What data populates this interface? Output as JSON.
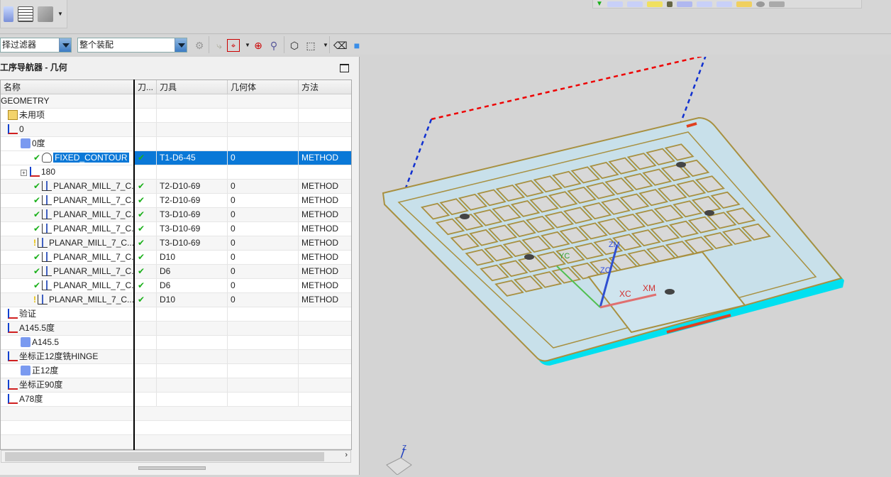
{
  "toolbar": {
    "filter_label": "择过滤器",
    "assembly_label": "整个装配"
  },
  "navigator": {
    "title": "工序导航器 - 几何",
    "columns": [
      "名称",
      "刀...",
      "刀具",
      "几何体",
      "方法"
    ],
    "rows": [
      {
        "name": "GEOMETRY",
        "icon": "none",
        "status": "",
        "tool": "",
        "geom": "",
        "method": "",
        "indent": 0
      },
      {
        "name": "未用项",
        "icon": "folder-icon",
        "status": "",
        "tool": "",
        "geom": "",
        "method": "",
        "indent": 1
      },
      {
        "name": "0",
        "icon": "mcs-icon",
        "status": "",
        "tool": "",
        "geom": "",
        "method": "",
        "indent": 1
      },
      {
        "name": "0度",
        "icon": "workpiece-icon",
        "status": "",
        "tool": "",
        "geom": "",
        "method": "",
        "indent": 2
      },
      {
        "name": "FIXED_CONTOUR",
        "icon": "fixed-contour-icon",
        "status": "ok",
        "tool": "T1-D6-45",
        "geom": "0",
        "method": "METHOD",
        "indent": 3,
        "selected": true
      },
      {
        "name": "180",
        "icon": "mcs-icon",
        "status": "",
        "tool": "",
        "geom": "",
        "method": "",
        "indent": 2,
        "expander": "+"
      },
      {
        "name": "PLANAR_MILL_7_C...",
        "icon": "planar-mill-icon",
        "status": "ok",
        "tool": "T2-D10-69",
        "geom": "0",
        "method": "METHOD",
        "indent": 3
      },
      {
        "name": "PLANAR_MILL_7_C...",
        "icon": "planar-mill-icon",
        "status": "ok",
        "tool": "T2-D10-69",
        "geom": "0",
        "method": "METHOD",
        "indent": 3
      },
      {
        "name": "PLANAR_MILL_7_C...",
        "icon": "planar-mill-icon",
        "status": "ok",
        "tool": "T3-D10-69",
        "geom": "0",
        "method": "METHOD",
        "indent": 3
      },
      {
        "name": "PLANAR_MILL_7_C...",
        "icon": "planar-mill-icon",
        "status": "ok",
        "tool": "T3-D10-69",
        "geom": "0",
        "method": "METHOD",
        "indent": 3
      },
      {
        "name": "PLANAR_MILL_7_C...",
        "icon": "planar-mill-icon",
        "status": "warn",
        "tool": "T3-D10-69",
        "geom": "0",
        "method": "METHOD",
        "indent": 3
      },
      {
        "name": "PLANAR_MILL_7_C...",
        "icon": "planar-mill-icon",
        "status": "ok",
        "tool": "D10",
        "geom": "0",
        "method": "METHOD",
        "indent": 3
      },
      {
        "name": "PLANAR_MILL_7_C...",
        "icon": "planar-mill-icon",
        "status": "ok",
        "tool": "D6",
        "geom": "0",
        "method": "METHOD",
        "indent": 3
      },
      {
        "name": "PLANAR_MILL_7_C...",
        "icon": "planar-mill-icon",
        "status": "ok",
        "tool": "D6",
        "geom": "0",
        "method": "METHOD",
        "indent": 3
      },
      {
        "name": "PLANAR_MILL_7_C...",
        "icon": "planar-mill-icon",
        "status": "warn",
        "tool": "D10",
        "geom": "0",
        "method": "METHOD",
        "indent": 3
      },
      {
        "name": "验证",
        "icon": "mcs-icon",
        "status": "",
        "tool": "",
        "geom": "",
        "method": "",
        "indent": 1
      },
      {
        "name": "A145.5度",
        "icon": "mcs-icon",
        "status": "",
        "tool": "",
        "geom": "",
        "method": "",
        "indent": 1
      },
      {
        "name": "A145.5",
        "icon": "workpiece-icon",
        "status": "",
        "tool": "",
        "geom": "",
        "method": "",
        "indent": 2
      },
      {
        "name": "坐标正12度铣HINGE",
        "icon": "mcs-icon",
        "status": "",
        "tool": "",
        "geom": "",
        "method": "",
        "indent": 1
      },
      {
        "name": "正12度",
        "icon": "workpiece-icon",
        "status": "",
        "tool": "",
        "geom": "",
        "method": "",
        "indent": 2
      },
      {
        "name": "坐标正90度",
        "icon": "mcs-icon",
        "status": "",
        "tool": "",
        "geom": "",
        "method": "",
        "indent": 1
      },
      {
        "name": "A78度",
        "icon": "mcs-icon",
        "status": "",
        "tool": "",
        "geom": "",
        "method": "",
        "indent": 1
      }
    ],
    "status_marks": {
      "ok": "✔",
      "warn": "!"
    }
  },
  "viewport": {
    "axis_labels": {
      "zm": "ZM",
      "zc": "ZC",
      "yc": "YC",
      "xc": "XC",
      "xm": "XM",
      "z": "Z"
    }
  },
  "colors": {
    "selection": "#0a78d7",
    "ok": "#1ab01a",
    "warn": "#e8c000",
    "part_fill": "#c8e0ea",
    "part_edge": "#a89040",
    "cyan_edge": "#00e0f0"
  }
}
